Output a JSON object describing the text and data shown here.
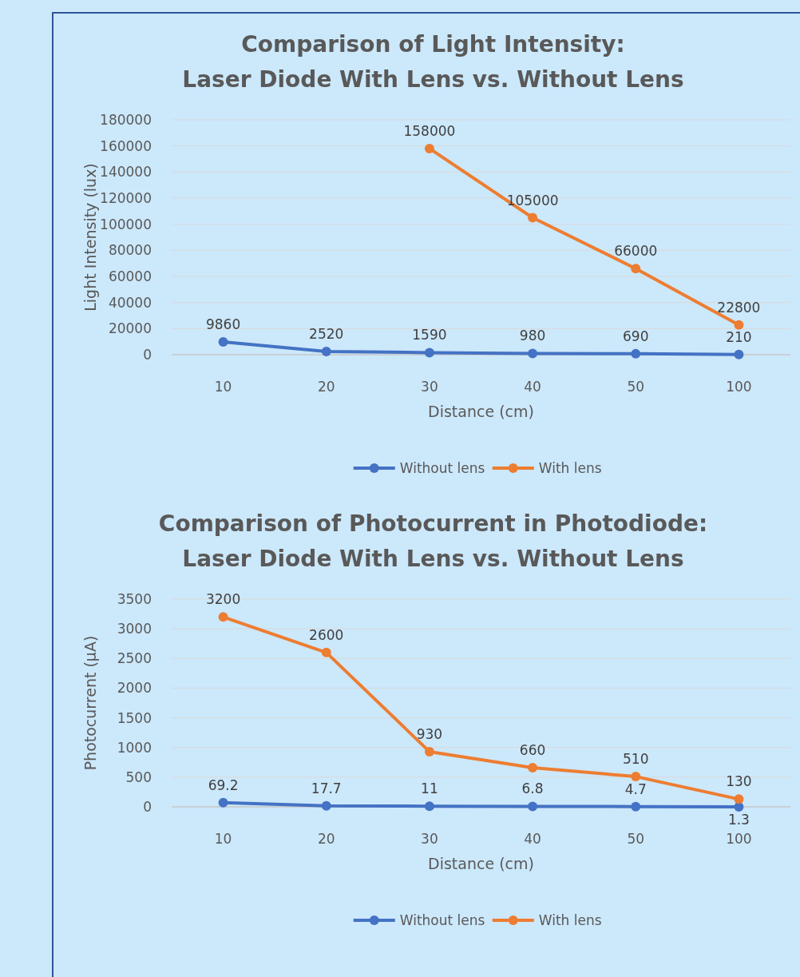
{
  "chart_data": [
    {
      "type": "line",
      "title": "Comparison of Light Intensity:\nLaser Diode With Lens vs. Without Lens",
      "xlabel": "Distance (cm)",
      "ylabel": "Light Intensity (lux)",
      "categories": [
        "10",
        "20",
        "30",
        "40",
        "50",
        "100"
      ],
      "series": [
        {
          "name": "Without lens",
          "color": "#4472c4",
          "values": [
            9860,
            2520,
            1590,
            980,
            690,
            210
          ]
        },
        {
          "name": "With lens",
          "color": "#ed7d31",
          "values": [
            null,
            null,
            158000,
            105000,
            66000,
            22800
          ]
        }
      ],
      "ylim": [
        0,
        180000
      ],
      "yticks": [
        0,
        20000,
        40000,
        60000,
        80000,
        100000,
        120000,
        140000,
        160000,
        180000
      ],
      "grid": "y",
      "legend": "bottom",
      "marker": "circle",
      "data_labels": true
    },
    {
      "type": "line",
      "title": "Comparison of Photocurrent in Photodiode:\nLaser Diode With Lens vs. Without Lens",
      "xlabel": "Distance (cm)",
      "ylabel": "Photocurrent (µA)",
      "categories": [
        "10",
        "20",
        "30",
        "40",
        "50",
        "100"
      ],
      "series": [
        {
          "name": "Without lens",
          "color": "#4472c4",
          "values": [
            69.2,
            17.7,
            11,
            6.8,
            4.7,
            1.3
          ]
        },
        {
          "name": "With lens",
          "color": "#ed7d31",
          "values": [
            3200,
            2600,
            930,
            660,
            510,
            130
          ]
        }
      ],
      "ylim": [
        0,
        3500
      ],
      "yticks": [
        0,
        500,
        1000,
        1500,
        2000,
        2500,
        3000,
        3500
      ],
      "grid": "y",
      "legend": "bottom",
      "marker": "circle",
      "data_labels": true
    }
  ]
}
